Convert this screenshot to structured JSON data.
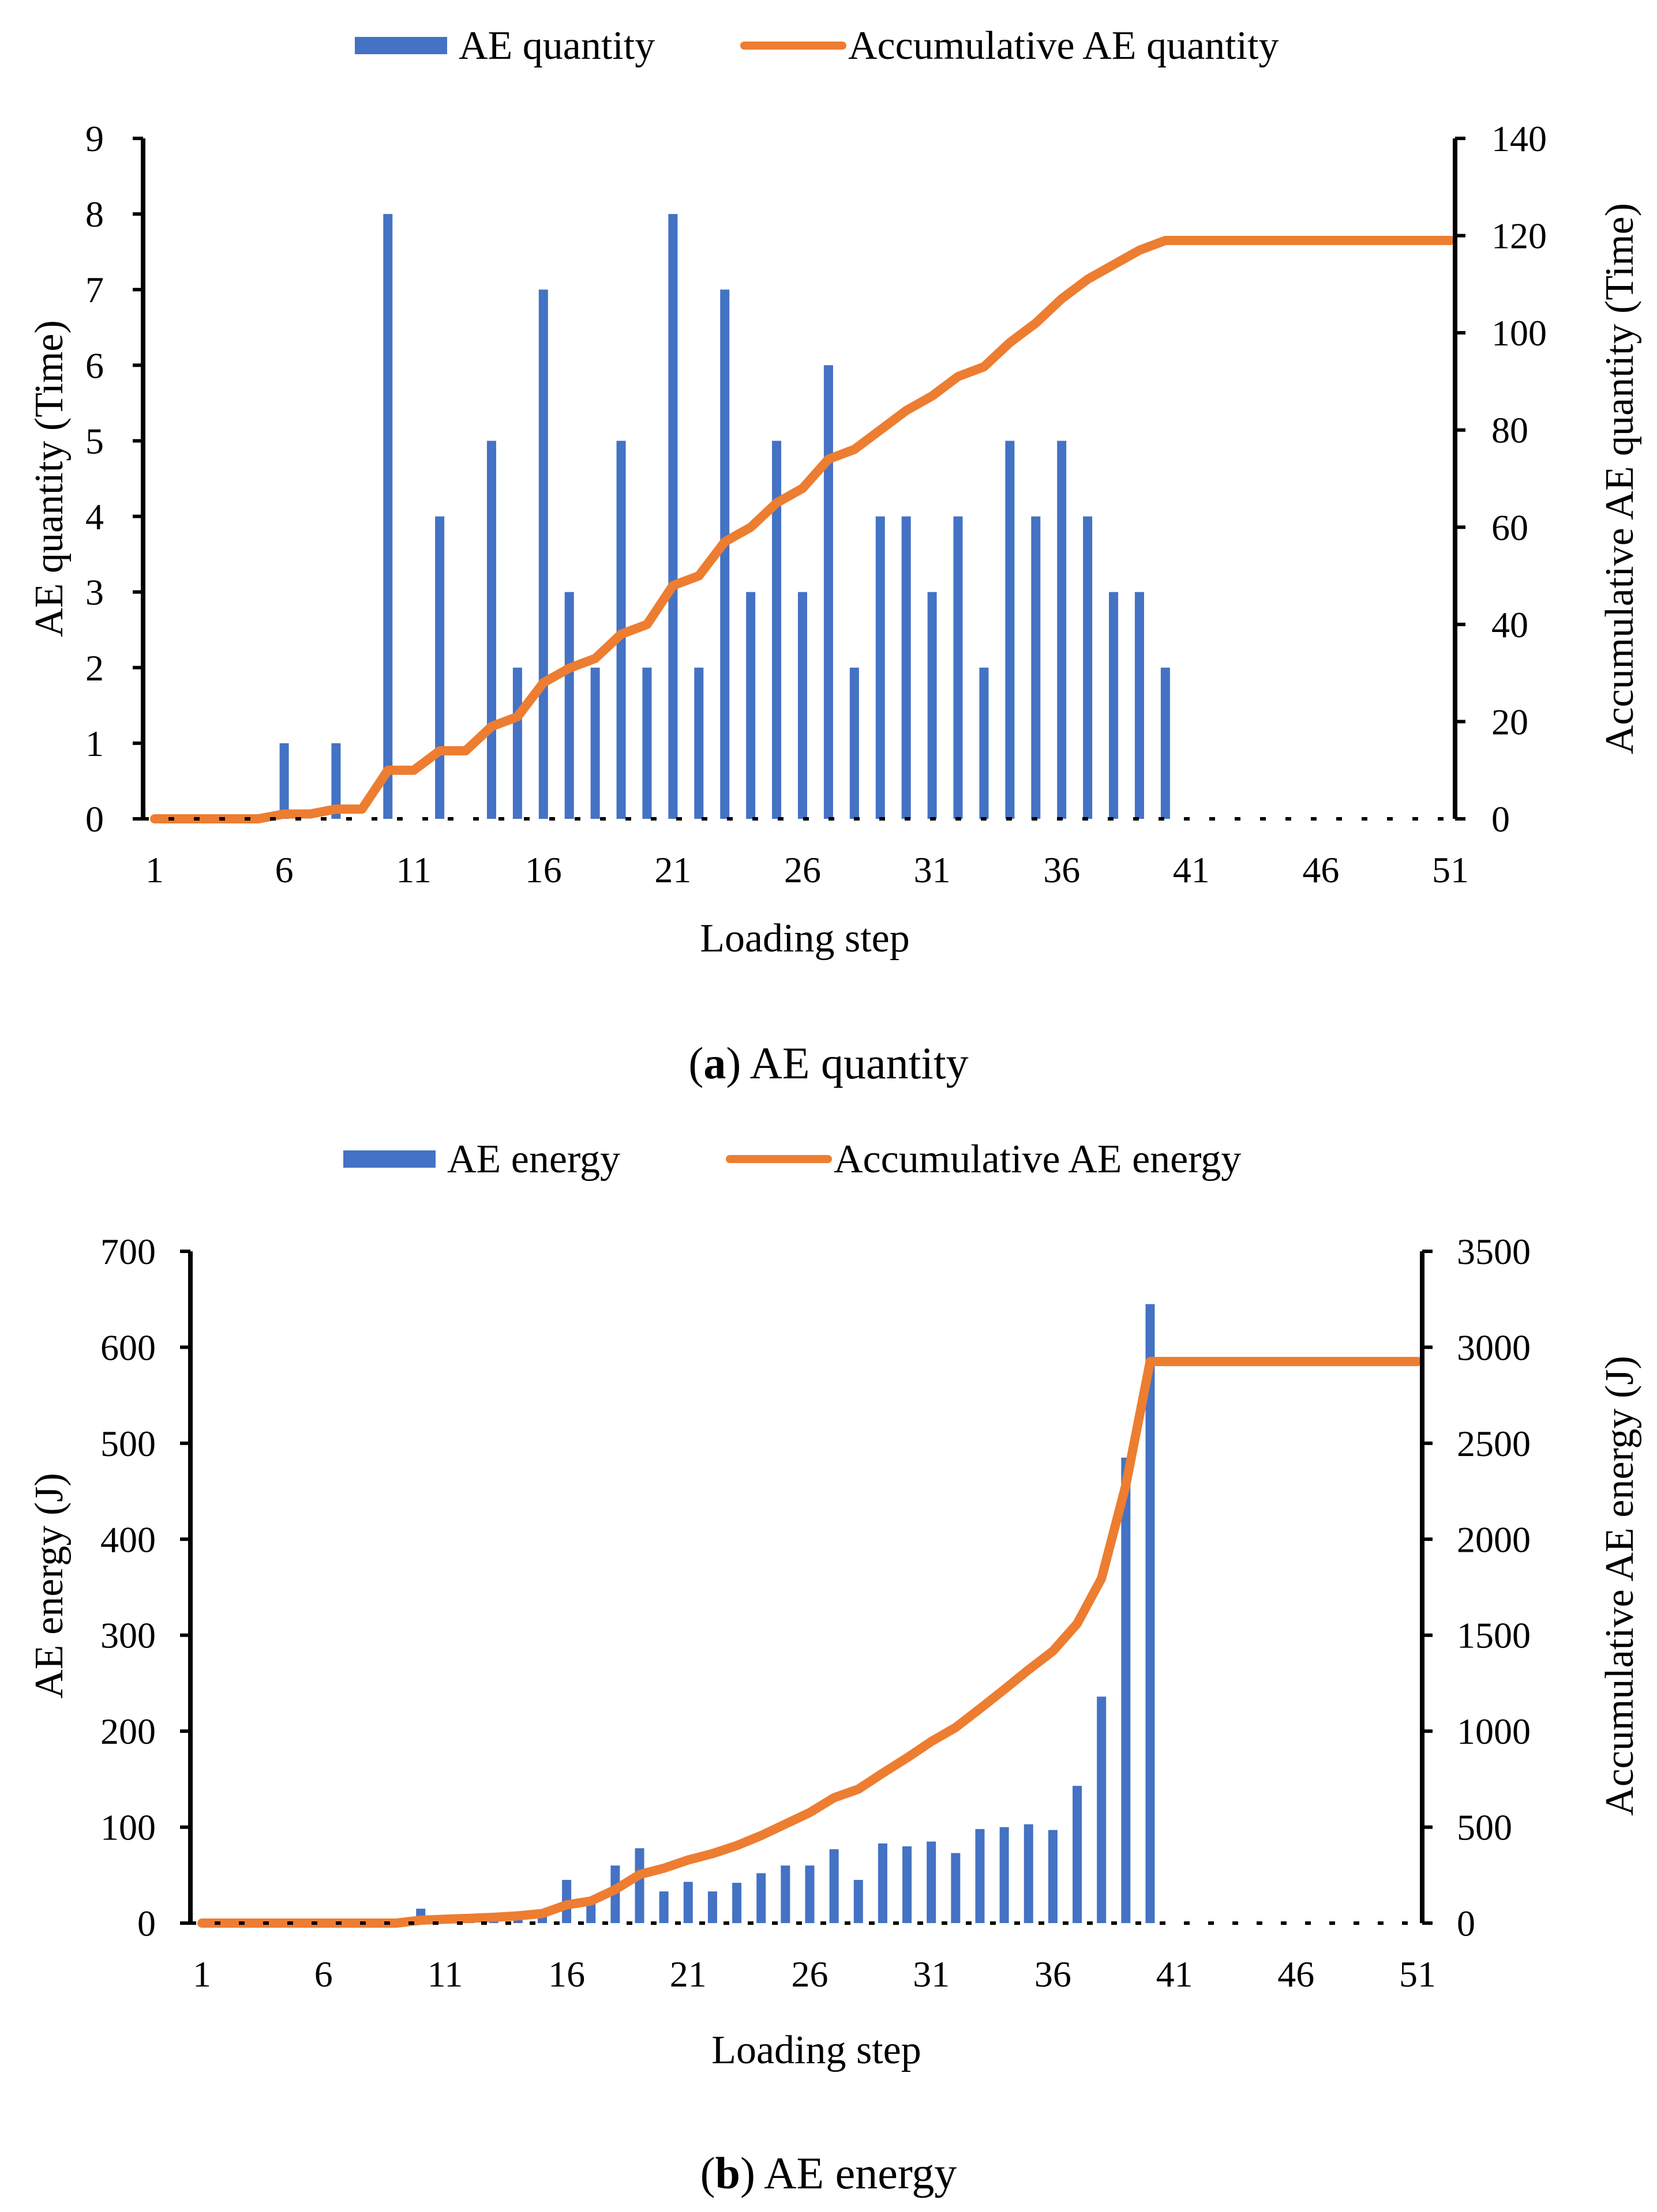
{
  "chart_data": [
    {
      "type": "bar+line",
      "caption_letter": "a",
      "caption_text": ") AE quantity",
      "caption_open": "(",
      "legend": [
        "AE quantity",
        "Accumulative AE quantity"
      ],
      "xlabel": "Loading step",
      "ylabel": "AE quantity (Time)",
      "y2label": "Accumulative AE quantity (Time)",
      "x_ticks": [
        "1",
        "6",
        "11",
        "16",
        "21",
        "26",
        "31",
        "36",
        "41",
        "46",
        "51"
      ],
      "y_ticks": [
        "0",
        "1",
        "2",
        "3",
        "4",
        "5",
        "6",
        "7",
        "8",
        "9"
      ],
      "y2_ticks": [
        "0",
        "20",
        "40",
        "60",
        "80",
        "100",
        "120",
        "140"
      ],
      "ylim": [
        0,
        9
      ],
      "y2lim": [
        0,
        140
      ],
      "xlim": [
        1,
        51
      ],
      "colors": {
        "bar": "#4472C4",
        "line": "#ED7D31"
      },
      "bars": [
        0,
        0,
        0,
        0,
        0,
        1,
        0,
        1,
        0,
        8,
        0,
        4,
        0,
        5,
        2,
        7,
        3,
        2,
        5,
        2,
        8,
        2,
        7,
        3,
        5,
        3,
        6,
        2,
        4,
        4,
        3,
        4,
        2,
        5,
        4,
        5,
        4,
        3,
        3,
        2,
        0,
        0,
        0,
        0,
        0,
        0,
        0,
        0,
        0,
        0,
        0
      ],
      "cumulative": [
        0,
        0,
        0,
        0,
        0,
        1,
        1,
        2,
        2,
        10,
        10,
        14,
        14,
        19,
        21,
        28,
        31,
        33,
        38,
        40,
        48,
        50,
        57,
        60,
        65,
        68,
        74,
        76,
        80,
        84,
        87,
        91,
        93,
        98,
        102,
        107,
        111,
        114,
        117,
        119,
        119,
        119,
        119,
        119,
        119,
        119,
        119,
        119,
        119,
        119,
        119
      ]
    },
    {
      "type": "bar+line",
      "caption_letter": "b",
      "caption_text": ") AE energy",
      "caption_open": "(",
      "legend": [
        "AE energy",
        "Accumulative AE energy"
      ],
      "xlabel": "Loading step",
      "ylabel": "AE energy (J)",
      "y2label": "Accumulative AE energy (J)",
      "x_ticks": [
        "1",
        "6",
        "11",
        "16",
        "21",
        "26",
        "31",
        "36",
        "41",
        "46",
        "51"
      ],
      "y_ticks": [
        "0",
        "100",
        "200",
        "300",
        "400",
        "500",
        "600",
        "700"
      ],
      "y2_ticks": [
        "0",
        "500",
        "1000",
        "1500",
        "2000",
        "2500",
        "3000",
        "3500"
      ],
      "ylim": [
        0,
        700
      ],
      "y2lim": [
        0,
        3500
      ],
      "xlim": [
        1,
        51
      ],
      "colors": {
        "bar": "#4472C4",
        "line": "#ED7D31"
      },
      "bars": [
        0,
        0,
        0,
        0,
        0,
        0,
        0,
        0,
        0,
        15,
        5,
        5,
        5,
        8,
        12,
        45,
        20,
        60,
        78,
        33,
        43,
        33,
        42,
        52,
        60,
        60,
        77,
        45,
        83,
        80,
        85,
        73,
        98,
        100,
        103,
        97,
        143,
        236,
        485,
        645,
        0,
        0,
        0,
        0,
        0,
        0,
        0,
        0,
        0,
        0,
        0
      ],
      "cumulative": [
        0,
        0,
        0,
        0,
        0,
        0,
        0,
        0,
        0,
        15,
        20,
        25,
        30,
        38,
        50,
        95,
        115,
        175,
        253,
        286,
        329,
        362,
        404,
        456,
        516,
        576,
        653,
        698,
        781,
        861,
        946,
        1019,
        1117,
        1217,
        1320,
        1417,
        1560,
        1796,
        2281,
        2926,
        2926,
        2926,
        2926,
        2926,
        2926,
        2926,
        2926,
        2926,
        2926,
        2926,
        2926
      ]
    }
  ]
}
